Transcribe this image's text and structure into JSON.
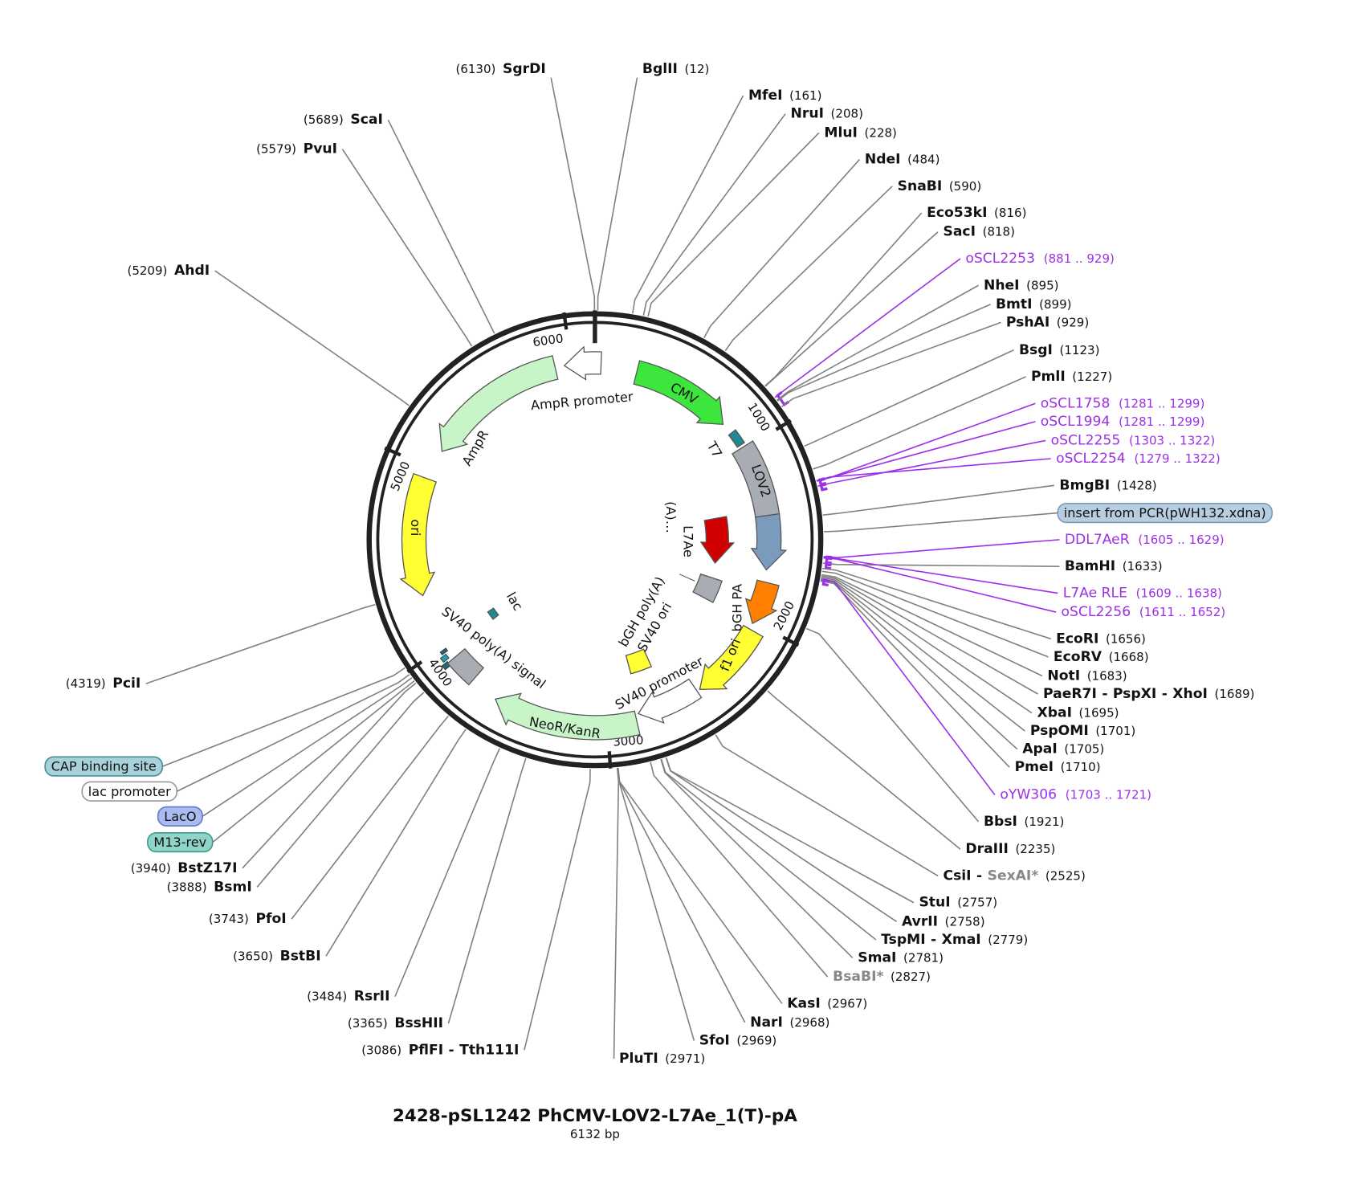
{
  "title": "2428-pSL1242 PhCMV-LOV2-L7Ae_1(T)-pA",
  "size_label": "6132 bp",
  "length": 6132,
  "ticks": [
    1000,
    2000,
    3000,
    4000,
    5000,
    6000
  ],
  "name_separator": "-",
  "primer_color": "#9b30e8",
  "site_line_color": "#808080",
  "features": [
    {
      "name": "CMV",
      "color": "#3de63d"
    },
    {
      "name": "T7",
      "color": "#1f8a94"
    },
    {
      "name": "LOV2",
      "color": "#a7adb3"
    },
    {
      "name": "L7Ae",
      "color": "#d10000"
    },
    {
      "name": "(A)…"
    },
    {
      "name": "bGH poly(A)",
      "color": "#a7adb3"
    },
    {
      "name": "bGH PA",
      "color": "#ff7f00"
    },
    {
      "name": "f1 ori",
      "color": "#ffff33"
    },
    {
      "name": "SV40 promoter",
      "color": "#ffffff"
    },
    {
      "name": "SV40 ori",
      "color": "#ffff33"
    },
    {
      "name": "NeoR/KanR",
      "color": "#c8f5c8"
    },
    {
      "name": "SV40 poly(A) signal",
      "color": "#a7adb3"
    },
    {
      "name": "lac",
      "color": "#1f8a94"
    },
    {
      "name": "ori",
      "color": "#ffff33"
    },
    {
      "name": "AmpR",
      "color": "#c8f5c8"
    },
    {
      "name": "AmpR promoter",
      "color": "#ffffff"
    }
  ],
  "labels": [
    {
      "names": [
        "BglII"
      ],
      "bp": 12,
      "position": "(12)"
    },
    {
      "names": [
        "MfeI"
      ],
      "bp": 161,
      "position": "(161)"
    },
    {
      "names": [
        "NruI"
      ],
      "bp": 208,
      "position": "(208)"
    },
    {
      "names": [
        "MluI"
      ],
      "bp": 228,
      "position": "(228)"
    },
    {
      "names": [
        "NdeI"
      ],
      "bp": 484,
      "position": "(484)"
    },
    {
      "names": [
        "SnaBI"
      ],
      "bp": 590,
      "position": "(590)"
    },
    {
      "names": [
        "Eco53kI"
      ],
      "bp": 816,
      "position": "(816)"
    },
    {
      "names": [
        "SacI"
      ],
      "bp": 818,
      "position": "(818)"
    },
    {
      "primer": "oSCL2253",
      "start": 881,
      "end": 929,
      "range": "(881 .. 929)"
    },
    {
      "names": [
        "NheI"
      ],
      "bp": 895,
      "position": "(895)"
    },
    {
      "names": [
        "BmtI"
      ],
      "bp": 899,
      "position": "(899)"
    },
    {
      "names": [
        "PshAI"
      ],
      "bp": 929,
      "position": "(929)"
    },
    {
      "names": [
        "BsgI"
      ],
      "bp": 1123,
      "position": "(1123)"
    },
    {
      "names": [
        "PmlI"
      ],
      "bp": 1227,
      "position": "(1227)"
    },
    {
      "primer": "oSCL1758",
      "start": 1281,
      "end": 1299,
      "range": "(1281 .. 1299)"
    },
    {
      "primer": "oSCL1994",
      "start": 1281,
      "end": 1299,
      "range": "(1281 .. 1299)"
    },
    {
      "primer": "oSCL2255",
      "start": 1303,
      "end": 1322,
      "range": "(1303 .. 1322)"
    },
    {
      "primer": "oSCL2254",
      "start": 1279,
      "end": 1322,
      "range": "(1279 .. 1322)"
    },
    {
      "names": [
        "BmgBI"
      ],
      "bp": 1428,
      "position": "(1428)"
    },
    {
      "feature": "insert from PCR(pWH132.xdna)",
      "fill": "#b8cde0",
      "stroke": "#7b9bbd"
    },
    {
      "primer": "DDL7AeR",
      "start": 1605,
      "end": 1629,
      "range": "(1605 .. 1629)"
    },
    {
      "names": [
        "BamHI"
      ],
      "bp": 1633,
      "position": "(1633)"
    },
    {
      "primer": "L7Ae RLE",
      "start": 1609,
      "end": 1638,
      "range": "(1609 .. 1638)"
    },
    {
      "primer": "oSCL2256",
      "start": 1611,
      "end": 1652,
      "range": "(1611 .. 1652)"
    },
    {
      "names": [
        "EcoRI"
      ],
      "bp": 1656,
      "position": "(1656)"
    },
    {
      "names": [
        "EcoRV"
      ],
      "bp": 1668,
      "position": "(1668)"
    },
    {
      "names": [
        "NotI"
      ],
      "bp": 1683,
      "position": "(1683)"
    },
    {
      "names": [
        "PaeR7I",
        "PspXI",
        "XhoI"
      ],
      "bp": 1689,
      "position": "(1689)"
    },
    {
      "names": [
        "XbaI"
      ],
      "bp": 1695,
      "position": "(1695)"
    },
    {
      "names": [
        "PspOMI"
      ],
      "bp": 1701,
      "position": "(1701)"
    },
    {
      "names": [
        "ApaI"
      ],
      "bp": 1705,
      "position": "(1705)"
    },
    {
      "names": [
        "PmeI"
      ],
      "bp": 1710,
      "position": "(1710)"
    },
    {
      "primer": "oYW306",
      "start": 1703,
      "end": 1721,
      "range": "(1703 .. 1721)"
    },
    {
      "names": [
        "BbsI"
      ],
      "bp": 1921,
      "position": "(1921)"
    },
    {
      "names": [
        "DraIII"
      ],
      "bp": 2235,
      "position": "(2235)"
    },
    {
      "names": [
        "CsiI",
        "SexAI*"
      ],
      "bp": 2525,
      "position": "(2525)"
    },
    {
      "names": [
        "StuI"
      ],
      "bp": 2757,
      "position": "(2757)"
    },
    {
      "names": [
        "AvrII"
      ],
      "bp": 2758,
      "position": "(2758)"
    },
    {
      "names": [
        "TspMI",
        "XmaI"
      ],
      "bp": 2779,
      "position": "(2779)"
    },
    {
      "names": [
        "SmaI"
      ],
      "bp": 2781,
      "position": "(2781)"
    },
    {
      "names": [
        "BsaBI*"
      ],
      "bp": 2827,
      "position": "(2827)"
    },
    {
      "names": [
        "KasI"
      ],
      "bp": 2967,
      "position": "(2967)"
    },
    {
      "names": [
        "NarI"
      ],
      "bp": 2968,
      "position": "(2968)"
    },
    {
      "names": [
        "SfoI"
      ],
      "bp": 2969,
      "position": "(2969)"
    },
    {
      "names": [
        "PluTI"
      ],
      "bp": 2971,
      "position": "(2971)"
    },
    {
      "names": [
        "PflFI",
        "Tth111I"
      ],
      "bp": 3086,
      "position": "(3086)"
    },
    {
      "names": [
        "BssHII"
      ],
      "bp": 3365,
      "position": "(3365)"
    },
    {
      "names": [
        "RsrII"
      ],
      "bp": 3484,
      "position": "(3484)"
    },
    {
      "names": [
        "BstBI"
      ],
      "bp": 3650,
      "position": "(3650)"
    },
    {
      "names": [
        "PfoI"
      ],
      "bp": 3743,
      "position": "(3743)"
    },
    {
      "names": [
        "BsmI"
      ],
      "bp": 3888,
      "position": "(3888)"
    },
    {
      "names": [
        "BstZ17I"
      ],
      "bp": 3940,
      "position": "(3940)"
    },
    {
      "feature": "M13-rev",
      "fill": "#8fd3c9",
      "stroke": "#3a9a90"
    },
    {
      "feature": "LacO",
      "fill": "#aabbf2",
      "stroke": "#6677cc"
    },
    {
      "feature": "lac promoter",
      "fill": "#ffffff",
      "stroke": "#999999"
    },
    {
      "feature": "CAP binding site",
      "fill": "#a8d2da",
      "stroke": "#4a8a9a"
    },
    {
      "names": [
        "PciI"
      ],
      "bp": 4319,
      "position": "(4319)"
    },
    {
      "names": [
        "AhdI"
      ],
      "bp": 5209,
      "position": "(5209)"
    },
    {
      "names": [
        "PvuI"
      ],
      "bp": 5579,
      "position": "(5579)"
    },
    {
      "names": [
        "ScaI"
      ],
      "bp": 5689,
      "position": "(5689)"
    },
    {
      "names": [
        "SgrDI"
      ],
      "bp": 6130,
      "position": "(6130)"
    }
  ]
}
